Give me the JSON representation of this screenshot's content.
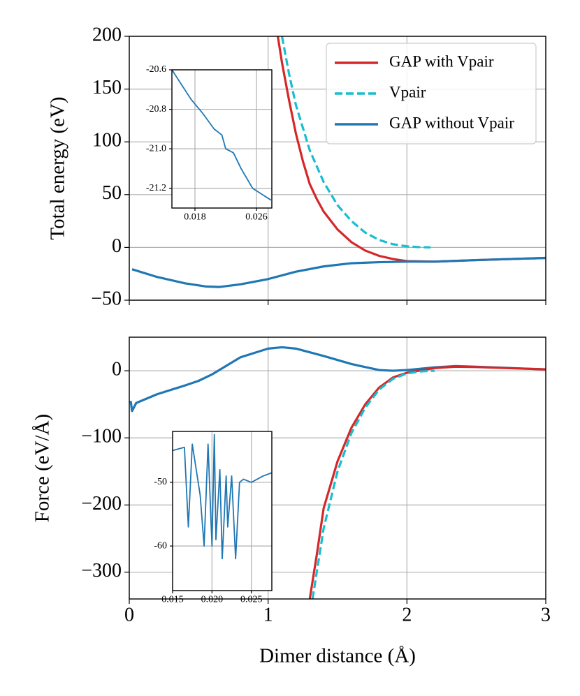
{
  "chart_data": [
    {
      "type": "line",
      "ylabel": "Total energy (eV)",
      "xlim": [
        0,
        3
      ],
      "ylim": [
        -50,
        200
      ],
      "xticks": [
        0,
        1,
        2,
        3
      ],
      "x_tick_labels": false,
      "yticks": [
        200,
        150,
        100,
        50,
        0,
        {
          "value": -50,
          "label": "−50"
        }
      ],
      "grid": true,
      "legend": "upper right",
      "series": [
        {
          "name": "GAP with Vpair",
          "color": "#d62728",
          "linestyle": "solid",
          "x": [
            1.07,
            1.1,
            1.15,
            1.2,
            1.25,
            1.3,
            1.35,
            1.4,
            1.5,
            1.6,
            1.7,
            1.8,
            1.9,
            2.0,
            2.2,
            2.5,
            3.0
          ],
          "values": [
            200,
            175,
            140,
            108,
            82,
            60,
            46,
            34,
            17,
            5,
            -3,
            -8,
            -11,
            -13,
            -13.5,
            -12,
            -10
          ]
        },
        {
          "name": "Vpair",
          "color": "#17becf",
          "linestyle": "dashed",
          "x": [
            1.1,
            1.15,
            1.2,
            1.3,
            1.4,
            1.5,
            1.6,
            1.7,
            1.8,
            1.9,
            2.0,
            2.1,
            2.17
          ],
          "values": [
            200,
            165,
            135,
            92,
            62,
            40,
            25,
            14,
            7,
            3,
            1,
            0.2,
            0
          ]
        },
        {
          "name": "GAP without Vpair",
          "color": "#1f77b4",
          "linestyle": "solid",
          "x": [
            0.02,
            0.2,
            0.4,
            0.55,
            0.65,
            0.8,
            1.0,
            1.2,
            1.4,
            1.6,
            1.8,
            2.0,
            2.2,
            2.5,
            3.0
          ],
          "values": [
            -20.7,
            -28,
            -34,
            -37,
            -37.5,
            -35,
            -30,
            -23,
            -18,
            -15,
            -14,
            -13.5,
            -13.5,
            -12,
            -10
          ]
        }
      ]
    },
    {
      "type": "line",
      "ylabel": "Force (eV/Å)",
      "xlabel": "Dimer distance (Å)",
      "xlim": [
        0,
        3
      ],
      "ylim": [
        -340,
        50
      ],
      "xticks": [
        0,
        1,
        2,
        3
      ],
      "x_tick_labels": true,
      "yticks": [
        0,
        {
          "value": -100,
          "label": "−100"
        },
        {
          "value": -200,
          "label": "−200"
        },
        {
          "value": -300,
          "label": "−300"
        }
      ],
      "grid": true,
      "series": [
        {
          "color": "#1f77b4",
          "linestyle": "solid",
          "x": [
            0.01,
            0.02,
            0.05,
            0.2,
            0.4,
            0.5,
            0.6,
            0.8,
            1.0,
            1.1,
            1.2,
            1.4,
            1.6,
            1.8,
            1.9,
            2.0,
            2.2,
            2.35,
            2.5,
            3.0
          ],
          "values": [
            -45,
            -60,
            -48,
            -35,
            -22,
            -15,
            -5,
            20,
            33,
            35,
            33,
            22,
            10,
            1,
            0,
            1,
            5,
            7,
            6,
            2
          ]
        },
        {
          "color": "#d62728",
          "linestyle": "solid",
          "x": [
            1.3,
            1.35,
            1.4,
            1.5,
            1.6,
            1.7,
            1.8,
            1.9,
            2.0,
            2.2,
            2.35,
            2.5,
            3.0
          ],
          "values": [
            -340,
            -275,
            -205,
            -135,
            -85,
            -50,
            -25,
            -10,
            -3,
            4,
            6,
            5.5,
            2
          ]
        },
        {
          "color": "#17becf",
          "linestyle": "dashed",
          "x": [
            1.32,
            1.4,
            1.5,
            1.6,
            1.7,
            1.8,
            1.9,
            2.0,
            2.1,
            2.2
          ],
          "values": [
            -340,
            -235,
            -150,
            -93,
            -55,
            -28,
            -12,
            -4,
            -1,
            0
          ]
        }
      ]
    },
    {
      "type": "line",
      "xlim": [
        0.015,
        0.028
      ],
      "ylim": [
        -21.3,
        -20.6
      ],
      "xticks": [
        0.018,
        0.026
      ],
      "x_tick_labels": true,
      "yticks": [
        -20.6,
        -20.8,
        {
          "value": -21.0,
          "label": "-21.0"
        },
        -21.2
      ],
      "grid": true,
      "series": [
        {
          "color": "#1f77b4",
          "linestyle": "solid",
          "x": [
            0.015,
            0.0175,
            0.019,
            0.0205,
            0.0215,
            0.022,
            0.023,
            0.024,
            0.0255,
            0.0279
          ],
          "values": [
            -20.6,
            -20.75,
            -20.82,
            -20.9,
            -20.93,
            -21.0,
            -21.02,
            -21.1,
            -21.2,
            -21.26
          ]
        }
      ]
    },
    {
      "type": "line",
      "xlim": [
        0.015,
        0.0276
      ],
      "ylim": [
        -67,
        -42
      ],
      "xticks": [
        0.015,
        {
          "value": 0.02,
          "label": "0.020"
        },
        0.025
      ],
      "x_tick_labels": true,
      "yticks": [
        -50,
        -60
      ],
      "grid": true,
      "series": [
        {
          "color": "#1f77b4",
          "linestyle": "solid",
          "x": [
            0.015,
            0.0165,
            0.017,
            0.0175,
            0.0185,
            0.019,
            0.0195,
            0.02,
            0.0203,
            0.0205,
            0.021,
            0.0213,
            0.0218,
            0.022,
            0.0225,
            0.023,
            0.0235,
            0.024,
            0.025,
            0.0265,
            0.0276
          ],
          "values": [
            -45,
            -44.5,
            -57,
            -44,
            -52,
            -60,
            -44,
            -60,
            -42.5,
            -59,
            -48,
            -62,
            -49,
            -57,
            -49,
            -62,
            -50,
            -49.5,
            -50,
            -49,
            -48.5
          ]
        }
      ]
    }
  ]
}
